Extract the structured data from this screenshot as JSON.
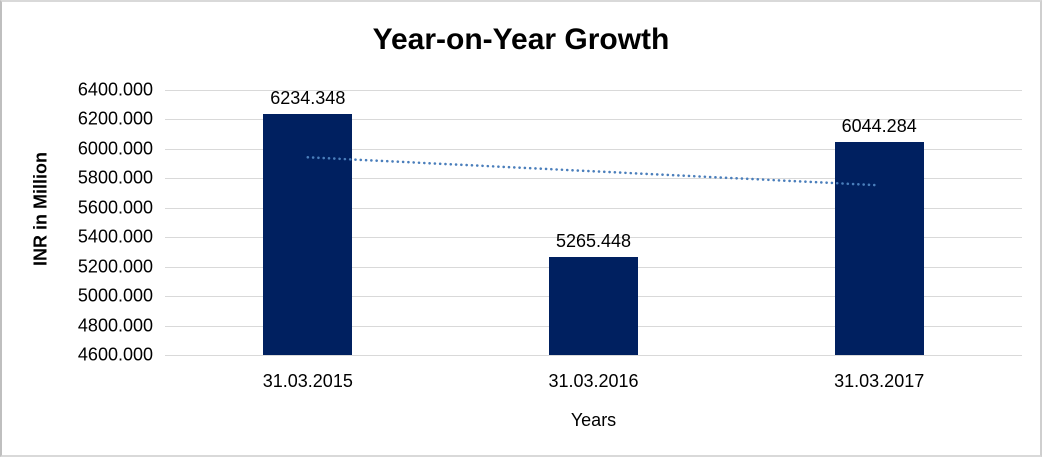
{
  "chart_data": {
    "type": "bar",
    "title": "Year-on-Year Growth",
    "xlabel": "Years",
    "ylabel": "INR in Million",
    "categories": [
      "31.03.2015",
      "31.03.2016",
      "31.03.2017"
    ],
    "values": [
      6234.348,
      5265.448,
      6044.284
    ],
    "data_labels": [
      "6234.348",
      "5265.448",
      "6044.284"
    ],
    "ylim": [
      4600,
      6400
    ],
    "ytick_step": 200,
    "yticks": [
      "6400.000",
      "6200.000",
      "6000.000",
      "5800.000",
      "5600.000",
      "5400.000",
      "5200.000",
      "5000.000",
      "4800.000",
      "4600.000"
    ],
    "grid": true,
    "legend": "none",
    "trendline": {
      "type": "linear",
      "style": "dotted",
      "start_value": 5943,
      "end_value": 5753
    },
    "colors": {
      "bar": "#002060",
      "trendline": "#4a7ebb",
      "gridline": "#d9d9d9",
      "text": "#000000"
    }
  }
}
